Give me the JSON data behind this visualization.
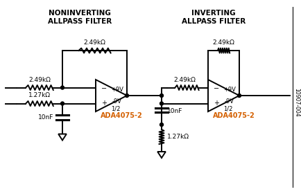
{
  "title_left": "NONINVERTING\nALLPASS FILTER",
  "title_right": "INVERTING\nALLPASS FILTER",
  "label_r1": "2.49kΩ",
  "label_r2": "2.49kΩ",
  "label_r3": "1.27kΩ",
  "label_c1": "10nF",
  "label_r4": "2.49kΩ",
  "label_r5": "2.49kΩ",
  "label_c2": "10nF",
  "label_r6": "1.27kΩ",
  "label_vp1": "+9V",
  "label_vn1": "-9V",
  "label_half1": "1/2",
  "label_ic1": "ADA4075-2",
  "label_vp2": "+9V",
  "label_vn2": "-9V",
  "label_half2": "1/2",
  "label_ic2": "ADA4075-2",
  "label_fig": "10907-004",
  "bg_color": "#ffffff",
  "line_color": "#000000",
  "orange_color": "#d46000",
  "lw": 1.4
}
